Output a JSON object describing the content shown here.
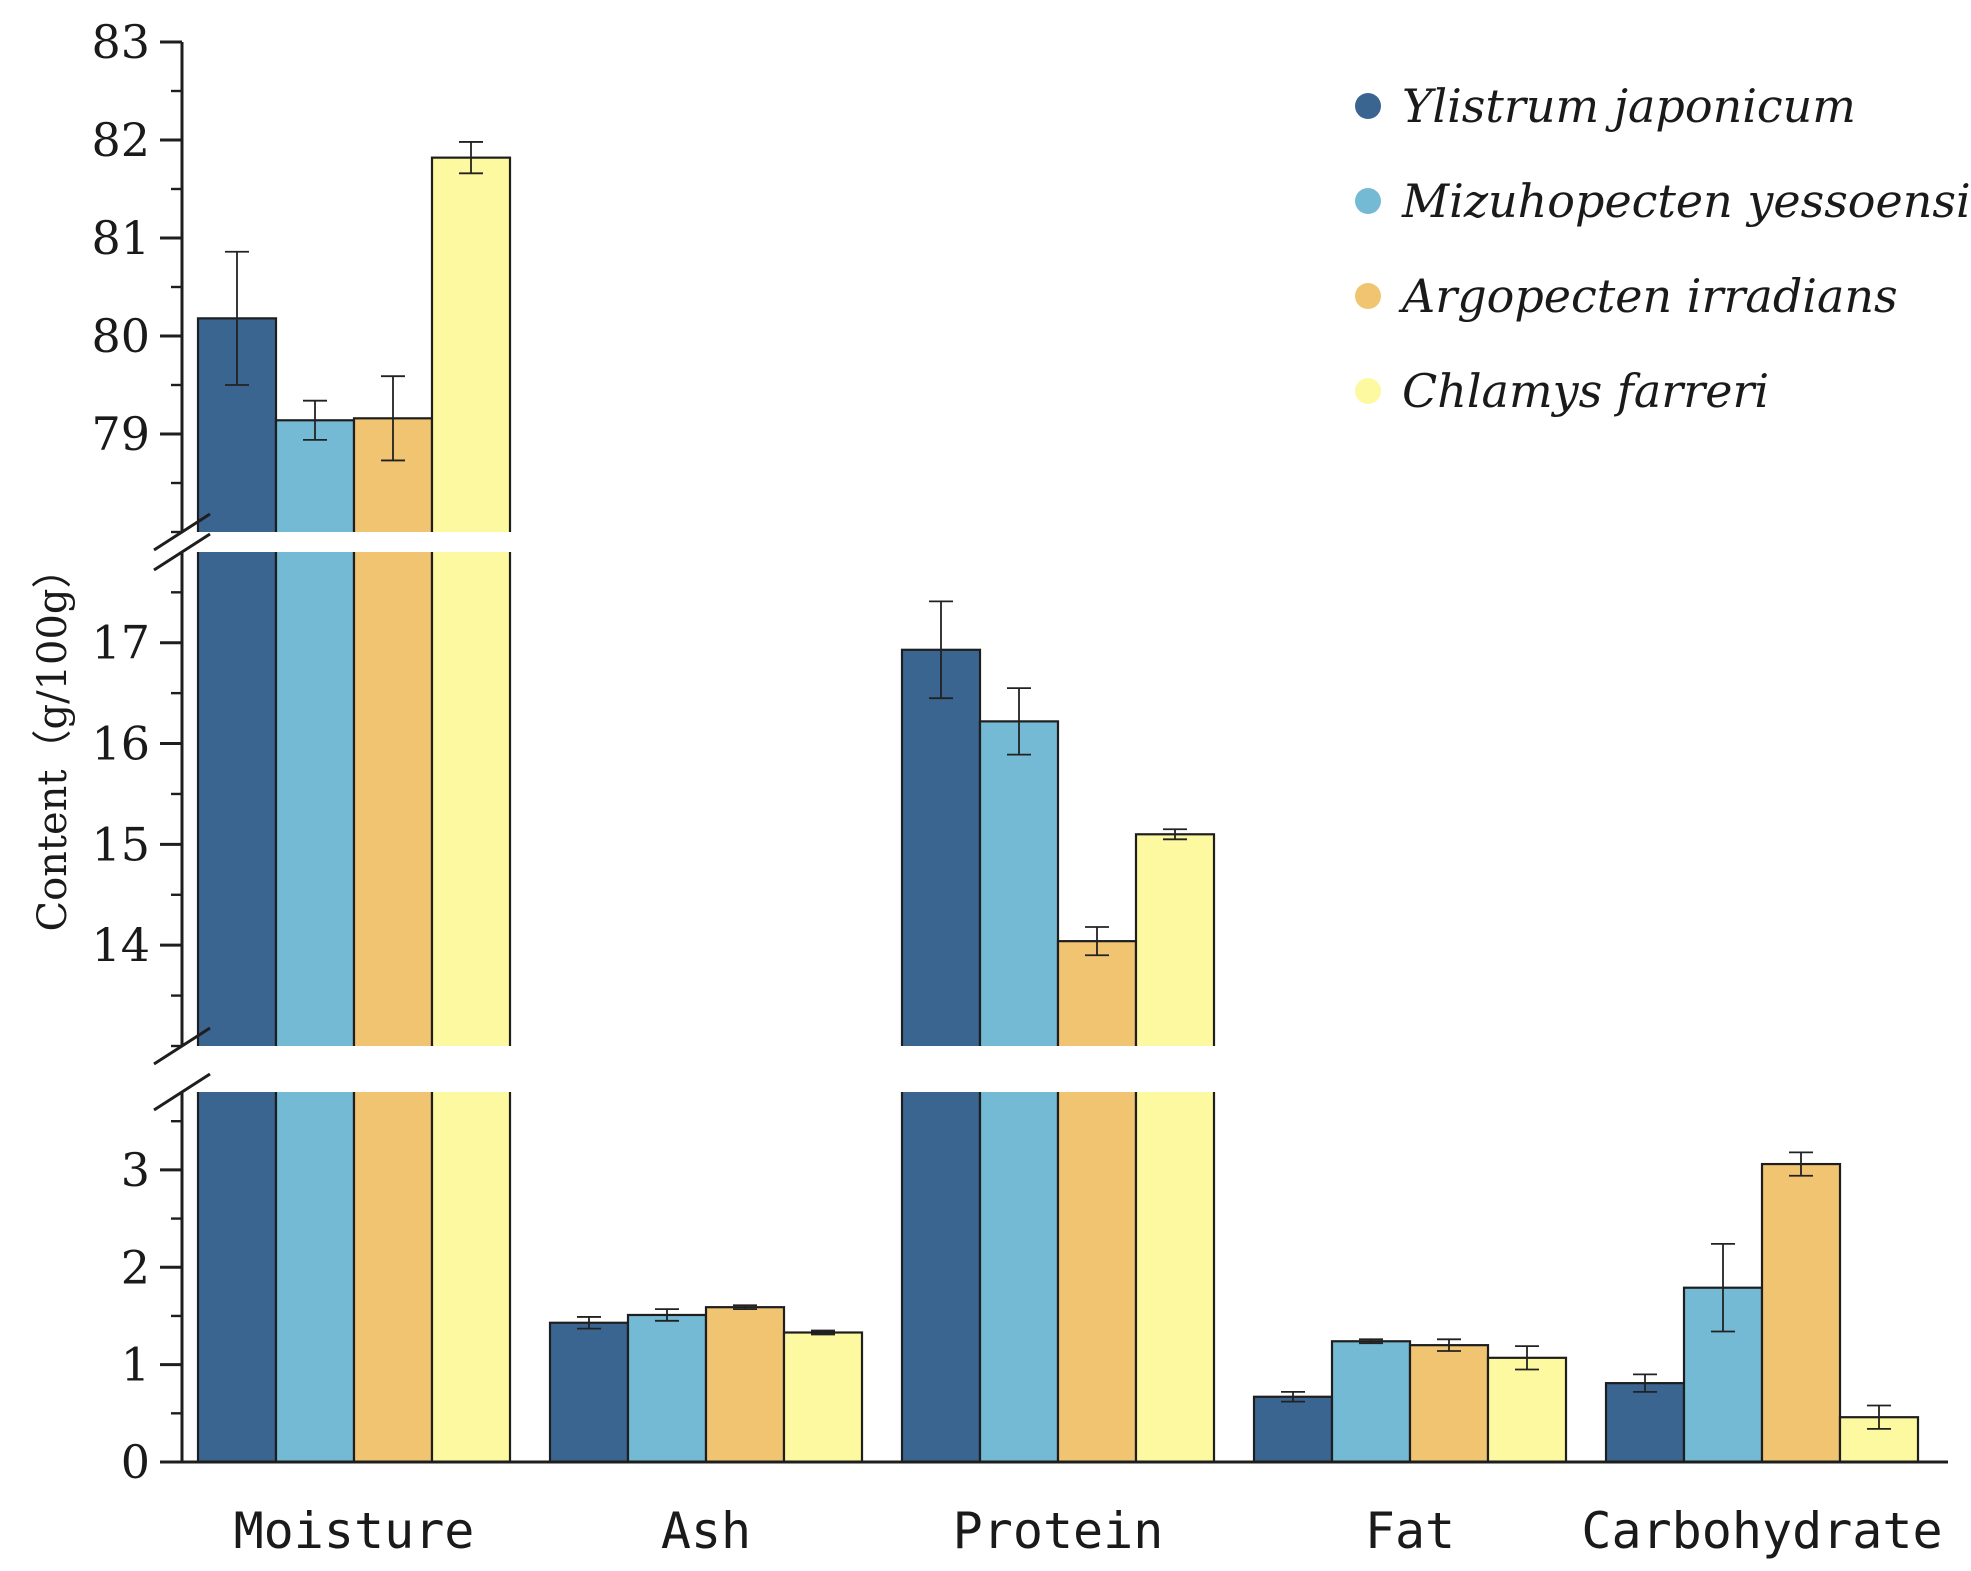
{
  "chart_data": {
    "type": "bar",
    "title": "",
    "xlabel": "",
    "ylabel": "Content（g/100g）",
    "categories": [
      "Moisture",
      "Ash",
      "Protein",
      "Fat",
      "Carbohydrate"
    ],
    "series": [
      {
        "name": "Ylistrum japonicum",
        "color": "#3a6591",
        "values": [
          80.18,
          1.43,
          16.93,
          0.67,
          0.81
        ],
        "errors": [
          0.68,
          0.06,
          0.48,
          0.05,
          0.09
        ]
      },
      {
        "name": "Mizuhopecten yessoensis",
        "color": "#74bad5",
        "values": [
          79.14,
          1.51,
          16.22,
          1.24,
          1.79
        ],
        "errors": [
          0.2,
          0.06,
          0.33,
          0.02,
          0.45
        ]
      },
      {
        "name": "Argopecten irradians",
        "color": "#f0c470",
        "values": [
          79.16,
          1.59,
          14.04,
          1.2,
          3.06
        ],
        "errors": [
          0.43,
          0.02,
          0.14,
          0.06,
          0.12
        ]
      },
      {
        "name": "Chlamys farreri",
        "color": "#fdf9a0",
        "values": [
          81.82,
          1.33,
          15.1,
          1.07,
          0.46
        ],
        "errors": [
          0.16,
          0.02,
          0.05,
          0.12,
          0.12
        ]
      }
    ],
    "axis_breaks": [
      {
        "range": [
          0,
          3.8
        ],
        "ticks": [
          "0",
          "1",
          "2",
          "3"
        ]
      },
      {
        "range": [
          13,
          17.9
        ],
        "ticks": [
          "14",
          "15",
          "16",
          "17"
        ]
      },
      {
        "range": [
          78,
          83
        ],
        "ticks": [
          "79",
          "80",
          "81",
          "82",
          "83"
        ]
      }
    ],
    "grid": false,
    "legend": "top-right"
  }
}
